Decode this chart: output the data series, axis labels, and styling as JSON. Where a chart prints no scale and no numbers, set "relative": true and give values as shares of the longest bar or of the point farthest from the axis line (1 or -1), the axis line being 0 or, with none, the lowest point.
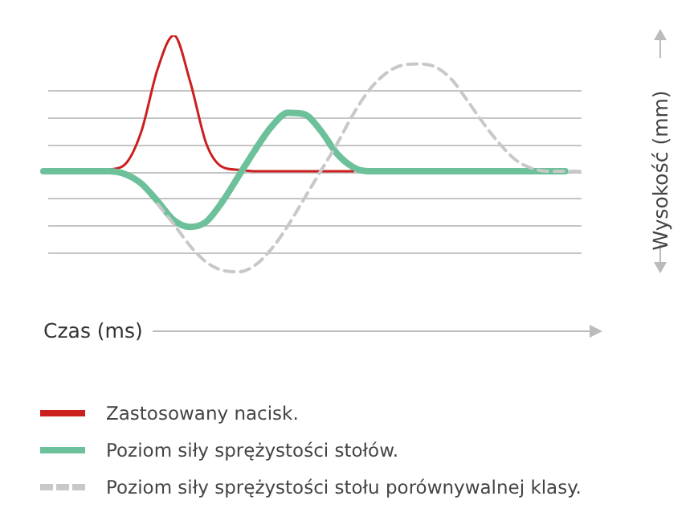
{
  "chart_data": {
    "type": "line",
    "relative": true,
    "xlabel": "Czas (ms)",
    "ylabel": "Wysokość (mm)",
    "grid": true,
    "legend": "bottom",
    "marker": "none",
    "categories": [
      null,
      null,
      null,
      null,
      null,
      null,
      null,
      null,
      null,
      null,
      null,
      null,
      null,
      null,
      null,
      null,
      null,
      null,
      null,
      null,
      null,
      null,
      null,
      null,
      null,
      null,
      null,
      null,
      null,
      null,
      null,
      null,
      null,
      null
    ],
    "series": [
      {
        "name": "Zastosowany nacisk.",
        "color": "#cc1f1f",
        "line_style": "solid",
        "values": [
          null,
          null,
          null,
          null,
          0.01,
          0.05,
          0.29,
          0.75,
          1,
          0.66,
          0.2,
          0.03,
          0.01,
          0,
          0,
          0,
          0,
          0,
          0,
          0,
          null,
          null,
          null,
          null,
          null,
          null,
          null,
          null,
          null,
          null,
          null,
          null,
          null,
          null
        ]
      },
      {
        "name": "Poziom siły sprężystości stołów.",
        "color": "#6cc09a",
        "line_style": "solid",
        "values": [
          0,
          0,
          0,
          0,
          0,
          -0.02,
          -0.09,
          -0.22,
          -0.36,
          -0.41,
          -0.37,
          -0.22,
          -0.03,
          0.16,
          0.33,
          0.43,
          0.42,
          0.3,
          0.13,
          0.03,
          0,
          0,
          0,
          0,
          0,
          0,
          0,
          0,
          0,
          0,
          0,
          0,
          0,
          null
        ]
      },
      {
        "name": "Poziom siły sprężystości stołu porównywalnej klasy.",
        "color": "#c8c8c8",
        "line_style": "dashed",
        "values": [
          null,
          null,
          null,
          null,
          null,
          null,
          null,
          -0.24,
          -0.39,
          -0.55,
          -0.67,
          -0.73,
          -0.74,
          -0.69,
          -0.57,
          -0.4,
          -0.2,
          0,
          0.2,
          0.42,
          0.6,
          0.72,
          0.78,
          0.79,
          0.77,
          0.68,
          0.52,
          0.35,
          0.2,
          0.08,
          0.02,
          0,
          0,
          0
        ]
      }
    ]
  }
}
